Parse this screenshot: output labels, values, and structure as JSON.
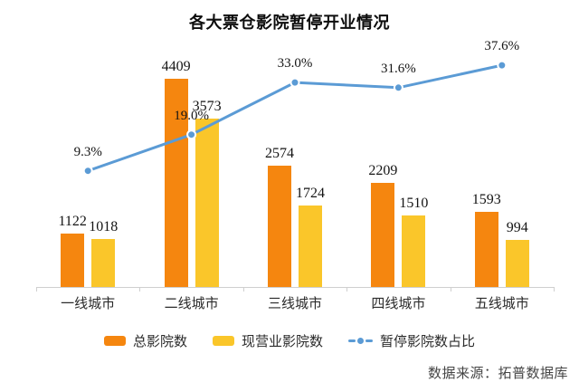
{
  "title": "各大票仓影院暂停开业情况",
  "source": "数据来源：拓普数据库",
  "chart_data": {
    "type": "bar",
    "combo": "bar+line",
    "title": "各大票仓影院暂停开业情况",
    "categories": [
      "一线城市",
      "二线城市",
      "三线城市",
      "四线城市",
      "五线城市"
    ],
    "series": [
      {
        "name": "总影院数",
        "kind": "bar",
        "color": "#F5860F",
        "values": [
          1122,
          4409,
          2574,
          2209,
          1593
        ]
      },
      {
        "name": "现营业影院数",
        "kind": "bar",
        "color": "#FAC62A",
        "values": [
          1018,
          3573,
          1724,
          1510,
          994
        ]
      },
      {
        "name": "暂停影院数占比",
        "kind": "line",
        "color": "#5B9BD5",
        "values": [
          9.3,
          19.0,
          33.0,
          31.6,
          37.6
        ],
        "labels": [
          "9.3%",
          "19.0%",
          "33.0%",
          "31.6%",
          "37.6%"
        ]
      }
    ],
    "xlabel": "",
    "ylabel": "",
    "ylim": [
      0,
      4600
    ],
    "grid": false,
    "legend_position": "bottom",
    "value_labels": true,
    "colors": {
      "bar_total": "#F5860F",
      "bar_open": "#FAC62A",
      "line_pct": "#5B9BD5",
      "axis": "#cfcfcf",
      "text": "#141414"
    }
  }
}
